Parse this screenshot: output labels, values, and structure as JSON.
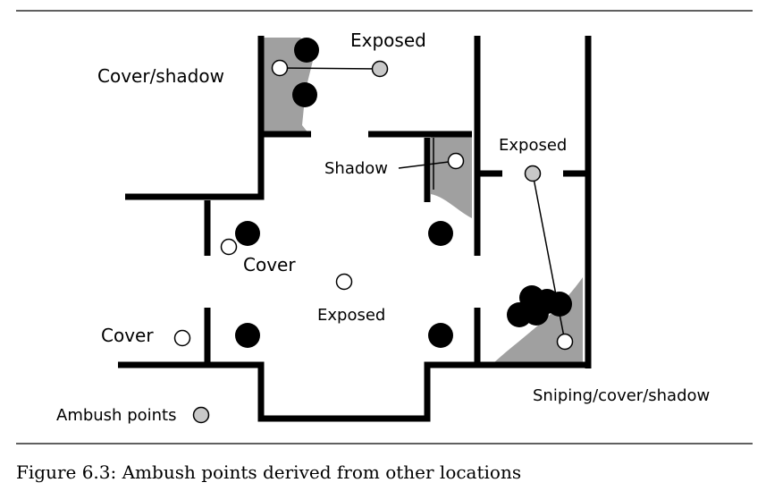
{
  "labels": {
    "cover_shadow": "Cover/shadow",
    "exposed_top": "Exposed",
    "exposed_right": "Exposed",
    "shadow": "Shadow",
    "cover_mid": "Cover",
    "exposed_center": "Exposed",
    "cover_left": "Cover",
    "sniping": "Sniping/cover/shadow",
    "legend": "Ambush points"
  },
  "caption": "Figure 6.3: Ambush points derived from other locations",
  "colors": {
    "wall": "#000000",
    "shade": "#a0a0a0",
    "ambush_point": "#c8c8c8",
    "open_point": "#ffffff",
    "obstacle": "#000000"
  }
}
